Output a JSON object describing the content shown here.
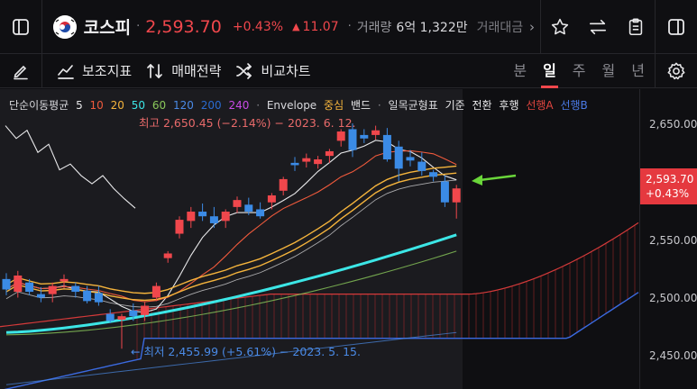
{
  "header": {
    "name": "코스피",
    "price": "2,593.70",
    "change_pct": "+0.43%",
    "change_abs": "11.07",
    "volume_label": "거래량",
    "volume_value": "6억 1,322만",
    "amount_label": "거래대금"
  },
  "toolbar": {
    "indicators": "보조지표",
    "strategy": "매매전략",
    "compare": "비교차트",
    "periods": [
      "분",
      "일",
      "주",
      "월",
      "년"
    ],
    "active_period": "일"
  },
  "legend": {
    "ma_label": "단순이동평균",
    "ma_periods": [
      "5",
      "10",
      "20",
      "50",
      "60",
      "120",
      "200",
      "240"
    ],
    "ma_colors": [
      "#e8e8ea",
      "#f05a3c",
      "#f5b43c",
      "#3ce6e6",
      "#8ac85a",
      "#4a8ae6",
      "#2a6ad0",
      "#c84ae6"
    ],
    "envelope": "Envelope",
    "center_label": "중심",
    "bands": "밴드",
    "ichimoku": "일목균형표",
    "base": "기준",
    "conversion": "전환",
    "lagging": "후행",
    "span_a": "선행A",
    "span_b": "선행B"
  },
  "annotations": {
    "high": "최고 2,650.45 (−2.14%) − 2023. 6. 12.",
    "low": "← 최저 2,455.99 (+5.61%) − 2023. 5. 15."
  },
  "axis": {
    "ticks": [
      "2,650.00",
      "2,550.00",
      "2,500.00",
      "2,450.00"
    ],
    "current_price": "2,593.70",
    "current_change": "+0.43%"
  },
  "colors": {
    "up": "#f0474c",
    "down": "#3b8be6",
    "background": "#0f0f12"
  },
  "icons": [
    "panel-left-icon",
    "star-icon",
    "swap-icon",
    "clipboard-icon",
    "panel-right-icon",
    "pen-icon",
    "indicator-icon",
    "strategy-icon",
    "compare-icon",
    "gear-icon"
  ],
  "chart_data": {
    "type": "candlestick",
    "candles": [
      {
        "o": 2516,
        "h": 2521,
        "l": 2502,
        "c": 2507
      },
      {
        "o": 2505,
        "h": 2523,
        "l": 2500,
        "c": 2519
      },
      {
        "o": 2513,
        "h": 2516,
        "l": 2502,
        "c": 2505
      },
      {
        "o": 2503,
        "h": 2509,
        "l": 2496,
        "c": 2500
      },
      {
        "o": 2503,
        "h": 2513,
        "l": 2496,
        "c": 2510
      },
      {
        "o": 2514,
        "h": 2520,
        "l": 2508,
        "c": 2516
      },
      {
        "o": 2510,
        "h": 2513,
        "l": 2500,
        "c": 2505
      },
      {
        "o": 2506,
        "h": 2510,
        "l": 2495,
        "c": 2497
      },
      {
        "o": 2504,
        "h": 2510,
        "l": 2493,
        "c": 2496
      },
      {
        "o": 2486,
        "h": 2490,
        "l": 2478,
        "c": 2480
      },
      {
        "o": 2481,
        "h": 2486,
        "l": 2456,
        "c": 2484
      },
      {
        "o": 2489,
        "h": 2495,
        "l": 2480,
        "c": 2484
      },
      {
        "o": 2485,
        "h": 2496,
        "l": 2480,
        "c": 2493
      },
      {
        "o": 2500,
        "h": 2513,
        "l": 2497,
        "c": 2510
      },
      {
        "o": 2534,
        "h": 2540,
        "l": 2530,
        "c": 2538
      },
      {
        "o": 2555,
        "h": 2570,
        "l": 2551,
        "c": 2567
      },
      {
        "o": 2566,
        "h": 2578,
        "l": 2560,
        "c": 2574
      },
      {
        "o": 2574,
        "h": 2581,
        "l": 2566,
        "c": 2570
      },
      {
        "o": 2570,
        "h": 2578,
        "l": 2560,
        "c": 2564
      },
      {
        "o": 2566,
        "h": 2576,
        "l": 2560,
        "c": 2574
      },
      {
        "o": 2578,
        "h": 2587,
        "l": 2573,
        "c": 2584
      },
      {
        "o": 2580,
        "h": 2586,
        "l": 2571,
        "c": 2574
      },
      {
        "o": 2576,
        "h": 2582,
        "l": 2568,
        "c": 2570
      },
      {
        "o": 2582,
        "h": 2590,
        "l": 2576,
        "c": 2588
      },
      {
        "o": 2592,
        "h": 2604,
        "l": 2588,
        "c": 2602
      },
      {
        "o": 2616,
        "h": 2621,
        "l": 2609,
        "c": 2614
      },
      {
        "o": 2617,
        "h": 2624,
        "l": 2612,
        "c": 2620
      },
      {
        "o": 2615,
        "h": 2622,
        "l": 2611,
        "c": 2619
      },
      {
        "o": 2622,
        "h": 2628,
        "l": 2616,
        "c": 2626
      },
      {
        "o": 2635,
        "h": 2645,
        "l": 2630,
        "c": 2643
      },
      {
        "o": 2645,
        "h": 2650,
        "l": 2621,
        "c": 2627
      },
      {
        "o": 2640,
        "h": 2645,
        "l": 2633,
        "c": 2637
      },
      {
        "o": 2640,
        "h": 2648,
        "l": 2636,
        "c": 2644
      },
      {
        "o": 2640,
        "h": 2646,
        "l": 2617,
        "c": 2619
      },
      {
        "o": 2630,
        "h": 2635,
        "l": 2600,
        "c": 2611
      },
      {
        "o": 2621,
        "h": 2627,
        "l": 2613,
        "c": 2618
      },
      {
        "o": 2617,
        "h": 2625,
        "l": 2605,
        "c": 2609
      },
      {
        "o": 2608,
        "h": 2610,
        "l": 2600,
        "c": 2604
      },
      {
        "o": 2600,
        "h": 2605,
        "l": 2578,
        "c": 2582
      },
      {
        "o": 2582,
        "h": 2597,
        "l": 2568,
        "c": 2594
      }
    ]
  }
}
